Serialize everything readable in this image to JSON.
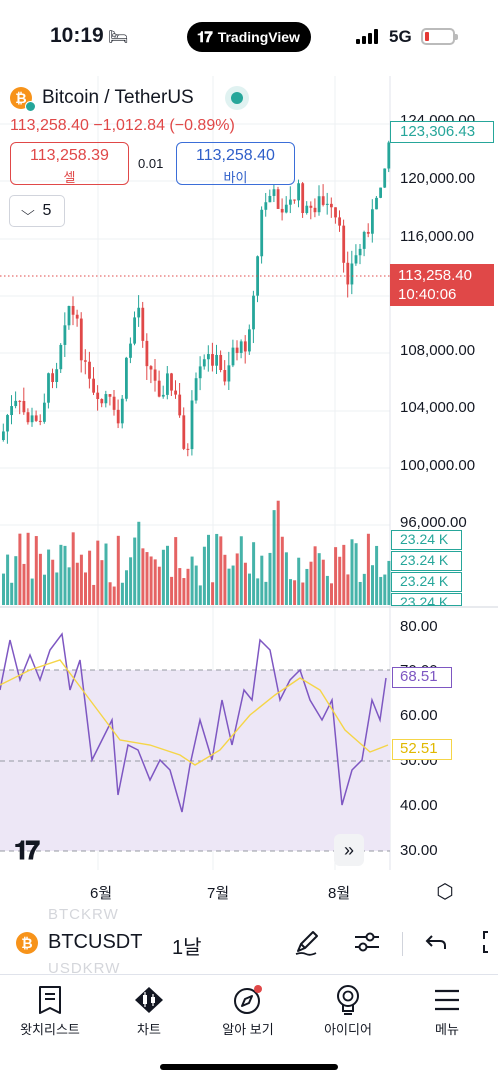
{
  "status_bar": {
    "time": "10:19",
    "pill_text": "TradingView",
    "network": "5G"
  },
  "header": {
    "symbol_title": "Bitcoin / TetherUS",
    "price_line": "113,258.40 −1,012.84 (−0.89%)",
    "sell_price": "113,258.39",
    "sell_label": "셀",
    "spread": "0.01",
    "buy_price": "113,258.40",
    "buy_label": "바이",
    "interval_dropdown": "5"
  },
  "price_axis": {
    "labels": [
      "124,000.00",
      "120,000.00",
      "116,000.00",
      "108,000.00",
      "104,000.00",
      "100,000.00",
      "96,000.00"
    ],
    "high_tag": "123,306.43",
    "last_price": "113,258.40",
    "countdown": "10:40:06"
  },
  "volume_tags": [
    "23.24 K",
    "23.24 K",
    "23.24 K",
    "23.24 K"
  ],
  "rsi_axis": {
    "labels": [
      "80.00",
      "70.00",
      "60.00",
      "50.00",
      "40.00",
      "30.00"
    ],
    "rsi_value": "68.51",
    "rsi_ma_value": "52.51"
  },
  "time_axis": [
    "6월",
    "7월",
    "8월"
  ],
  "colors": {
    "up": "#26a69a",
    "down": "#e04848",
    "rsi": "#7e57c2",
    "rsi_ma": "#f5d547",
    "rsi_band": "#ede7f6"
  },
  "toolbar": {
    "ghost_top": "BTCKRW",
    "symbol": "BTCUSDT",
    "interval": "1날",
    "ghost_bottom": "USDKRW"
  },
  "bottom_nav": [
    {
      "label": "왓치리스트",
      "icon": "watchlist-icon"
    },
    {
      "label": "차트",
      "icon": "chart-icon"
    },
    {
      "label": "알아 보기",
      "icon": "explore-icon"
    },
    {
      "label": "아이디어",
      "icon": "ideas-icon"
    },
    {
      "label": "메뉴",
      "icon": "menu-icon"
    }
  ]
}
